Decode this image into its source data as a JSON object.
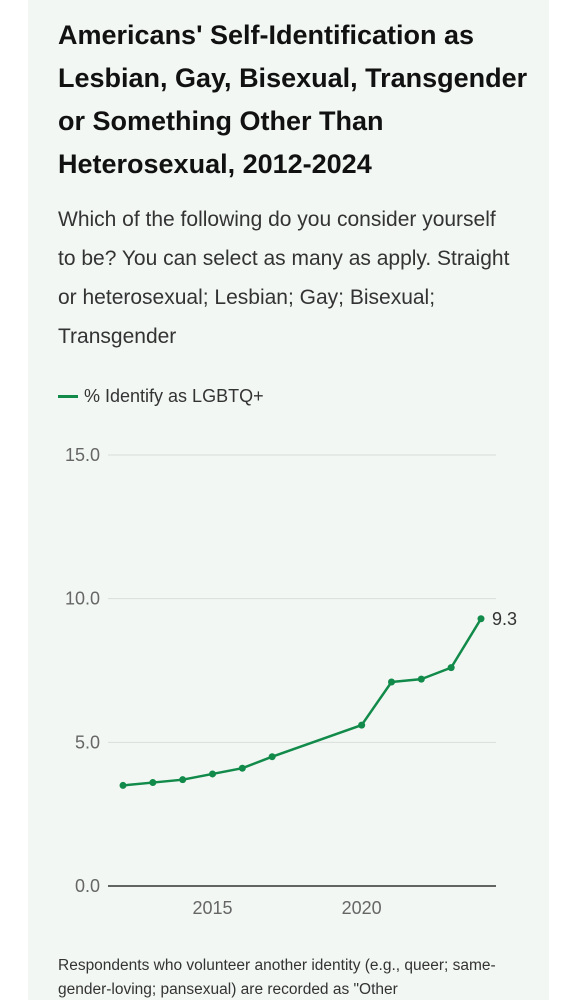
{
  "title": "Americans' Self-Identification as Lesbian, Gay, Bisexual, Transgender or Something Other Than Heterosexual, 2012-2024",
  "subtitle": "Which of the following do you consider yourself to be? You can select as many as apply. Straight or heterosexual; Lesbian; Gay; Bisexual; Transgender",
  "note": "Respondents who volunteer another identity (e.g., queer; same-gender-loving; pansexual) are recorded as \"Other",
  "colors": {
    "line": "#118a4a",
    "background": "#f2f7f3",
    "grid": "#d9dedb",
    "axis": "#333333"
  },
  "chart_data": {
    "type": "line",
    "title": "Americans' Self-Identification as Lesbian, Gay, Bisexual, Transgender or Something Other Than Heterosexual, 2012-2024",
    "xlabel": "",
    "ylabel": "",
    "ylim": [
      0,
      15
    ],
    "xlim": [
      2012,
      2024
    ],
    "y_ticks": [
      "0.0",
      "5.0",
      "10.0",
      "15.0"
    ],
    "x_ticks": [
      "2015",
      "2020"
    ],
    "grid": true,
    "legend_position": "top-left",
    "series": [
      {
        "name": "% Identify as LGBTQ+",
        "x": [
          2012,
          2013,
          2014,
          2015,
          2016,
          2017,
          2020,
          2021,
          2022,
          2023,
          2024
        ],
        "values": [
          3.5,
          3.6,
          3.7,
          3.9,
          4.1,
          4.5,
          5.6,
          7.1,
          7.2,
          7.6,
          9.3
        ]
      }
    ],
    "end_label": "9.3"
  }
}
